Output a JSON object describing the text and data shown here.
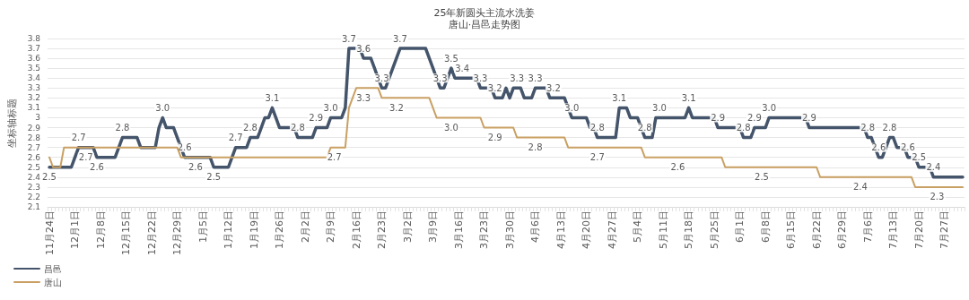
{
  "chart_data": {
    "type": "line",
    "title": "25年新圆头主流水洗姜",
    "subtitle": "唐山·昌邑走势图",
    "ylabel": "坐标轴标题",
    "categories": [
      "11月24日",
      null,
      null,
      null,
      null,
      null,
      null,
      "12月1日",
      null,
      null,
      null,
      null,
      null,
      null,
      "12月8日",
      null,
      null,
      null,
      null,
      null,
      null,
      "12月15日",
      null,
      null,
      null,
      null,
      null,
      null,
      "12月22日",
      null,
      null,
      null,
      null,
      null,
      null,
      "12月29日",
      null,
      null,
      null,
      null,
      null,
      null,
      "1月5日",
      null,
      null,
      null,
      null,
      null,
      null,
      "1月12日",
      null,
      null,
      null,
      null,
      null,
      null,
      "1月19日",
      null,
      null,
      null,
      null,
      null,
      null,
      "1月26日",
      null,
      null,
      null,
      null,
      null,
      null,
      "2月2日",
      null,
      null,
      null,
      null,
      null,
      null,
      "2月9日",
      null,
      null,
      null,
      null,
      null,
      null,
      "2月16日",
      null,
      null,
      null,
      null,
      null,
      null,
      "2月23日",
      null,
      null,
      null,
      null,
      null,
      null,
      "3月2日",
      null,
      null,
      null,
      null,
      null,
      null,
      "3月9日",
      null,
      null,
      null,
      null,
      null,
      null,
      "3月16日",
      null,
      null,
      null,
      null,
      null,
      null,
      "3月23日",
      null,
      null,
      null,
      null,
      null,
      null,
      "3月30日",
      null,
      null,
      null,
      null,
      null,
      null,
      "4月6日",
      null,
      null,
      null,
      null,
      null,
      null,
      "4月13日",
      null,
      null,
      null,
      null,
      null,
      null,
      "4月20日",
      null,
      null,
      null,
      null,
      null,
      null,
      "4月27日",
      null,
      null,
      null,
      null,
      null,
      null,
      "5月4日",
      null,
      null,
      null,
      null,
      null,
      null,
      "5月11日",
      null,
      null,
      null,
      null,
      null,
      null,
      "5月18日",
      null,
      null,
      null,
      null,
      null,
      null,
      "5月25日",
      null,
      null,
      null,
      null,
      null,
      null,
      "6月1日",
      null,
      null,
      null,
      null,
      null,
      null,
      "6月8日",
      null,
      null,
      null,
      null,
      null,
      null,
      "6月15日",
      null,
      null,
      null,
      null,
      null,
      null,
      "6月22日",
      null,
      null,
      null,
      null,
      null,
      null,
      "6月29日",
      null,
      null,
      null,
      null,
      null,
      null,
      "7月6日",
      null,
      null,
      null,
      null,
      null,
      null,
      "7月13日",
      null,
      null,
      null,
      null,
      null,
      null,
      "7月20日",
      null,
      null,
      null,
      null,
      null,
      null,
      "7月27日",
      null,
      null,
      null,
      null,
      null
    ],
    "series": [
      {
        "name": "昌邑",
        "color": "#44546a",
        "values": [
          2.5,
          2.5,
          2.5,
          2.5,
          2.5,
          2.5,
          2.5,
          2.6,
          2.7,
          2.7,
          2.7,
          2.7,
          2.7,
          2.6,
          2.6,
          2.6,
          2.6,
          2.6,
          2.6,
          2.7,
          2.8,
          2.8,
          2.8,
          2.8,
          2.8,
          2.7,
          2.7,
          2.7,
          2.7,
          2.7,
          2.9,
          3.0,
          2.9,
          2.9,
          2.9,
          2.8,
          2.7,
          2.6,
          2.6,
          2.6,
          2.6,
          2.6,
          2.6,
          2.6,
          2.6,
          2.5,
          2.5,
          2.5,
          2.5,
          2.5,
          2.6,
          2.7,
          2.7,
          2.7,
          2.7,
          2.8,
          2.8,
          2.8,
          2.9,
          3.0,
          3.0,
          3.1,
          3.0,
          2.9,
          2.9,
          2.9,
          2.9,
          2.9,
          2.8,
          2.8,
          2.8,
          2.8,
          2.8,
          2.9,
          2.9,
          2.9,
          2.9,
          3.0,
          3.0,
          3.0,
          3.0,
          3.1,
          3.7,
          3.7,
          3.7,
          3.7,
          3.6,
          3.6,
          3.6,
          3.5,
          3.4,
          3.3,
          3.3,
          3.4,
          3.5,
          3.6,
          3.7,
          3.7,
          3.7,
          3.7,
          3.7,
          3.7,
          3.7,
          3.7,
          3.6,
          3.5,
          3.4,
          3.3,
          3.3,
          3.4,
          3.5,
          3.4,
          3.4,
          3.4,
          3.4,
          3.4,
          3.4,
          3.4,
          3.3,
          3.3,
          3.3,
          3.3,
          3.2,
          3.2,
          3.2,
          3.3,
          3.2,
          3.3,
          3.3,
          3.3,
          3.2,
          3.2,
          3.2,
          3.3,
          3.3,
          3.3,
          3.3,
          3.2,
          3.2,
          3.2,
          3.2,
          3.2,
          3.1,
          3.0,
          3.0,
          3.0,
          3.0,
          3.0,
          2.9,
          2.9,
          2.8,
          2.8,
          2.8,
          2.8,
          2.8,
          2.8,
          3.1,
          3.1,
          3.1,
          3.0,
          3.0,
          3.0,
          2.9,
          2.8,
          2.8,
          2.8,
          3.0,
          3.0,
          3.0,
          3.0,
          3.0,
          3.0,
          3.0,
          3.0,
          3.0,
          3.1,
          3.0,
          3.0,
          3.0,
          3.0,
          3.0,
          3.0,
          3.0,
          2.9,
          2.9,
          2.9,
          2.9,
          2.9,
          2.9,
          2.9,
          2.8,
          2.8,
          2.8,
          2.9,
          2.9,
          2.9,
          2.9,
          3.0,
          3.0,
          3.0,
          3.0,
          3.0,
          3.0,
          3.0,
          3.0,
          3.0,
          3.0,
          3.0,
          2.9,
          2.9,
          2.9,
          2.9,
          2.9,
          2.9,
          2.9,
          2.9,
          2.9,
          2.9,
          2.9,
          2.9,
          2.9,
          2.9,
          2.9,
          2.9,
          2.8,
          2.8,
          2.7,
          2.6,
          2.6,
          2.7,
          2.8,
          2.8,
          2.7,
          2.7,
          2.7,
          2.6,
          2.6,
          2.6,
          2.5,
          2.5,
          2.5,
          2.5,
          2.4,
          2.4,
          2.4,
          2.4,
          2.4,
          2.4,
          2.4,
          2.4,
          2.4
        ],
        "value_labels": [
          "2.5",
          null,
          null,
          null,
          null,
          null,
          null,
          null,
          "2.7",
          null,
          null,
          null,
          null,
          "2.6",
          null,
          null,
          null,
          null,
          null,
          null,
          "2.8",
          null,
          null,
          null,
          null,
          null,
          null,
          null,
          null,
          null,
          null,
          "3.0",
          null,
          null,
          null,
          null,
          null,
          "2.6",
          null,
          null,
          null,
          null,
          null,
          null,
          null,
          "2.5",
          null,
          null,
          null,
          null,
          null,
          "2.7",
          null,
          null,
          null,
          "2.8",
          null,
          null,
          null,
          null,
          null,
          "3.1",
          null,
          null,
          null,
          null,
          null,
          null,
          "2.8",
          null,
          null,
          null,
          null,
          "2.9",
          null,
          null,
          null,
          "3.0",
          null,
          null,
          null,
          null,
          "3.7",
          null,
          null,
          null,
          "3.6",
          null,
          null,
          null,
          null,
          "3.3",
          null,
          null,
          null,
          null,
          "3.7",
          null,
          null,
          null,
          null,
          null,
          null,
          null,
          null,
          null,
          null,
          "3.3",
          null,
          null,
          "3.5",
          null,
          null,
          "3.4",
          null,
          null,
          null,
          null,
          "3.3",
          null,
          null,
          null,
          "3.2",
          null,
          null,
          null,
          null,
          null,
          "3.3",
          null,
          null,
          null,
          null,
          "3.3",
          null,
          null,
          null,
          null,
          "3.2",
          null,
          null,
          null,
          null,
          "3.0",
          null,
          null,
          null,
          null,
          null,
          null,
          "2.8",
          null,
          null,
          null,
          null,
          null,
          "3.1",
          null,
          null,
          null,
          null,
          null,
          null,
          "2.8",
          null,
          null,
          null,
          "3.0",
          null,
          null,
          null,
          null,
          null,
          null,
          null,
          "3.1",
          null,
          null,
          null,
          null,
          null,
          null,
          null,
          "2.9",
          null,
          null,
          null,
          null,
          null,
          null,
          "2.8",
          null,
          null,
          "2.9",
          null,
          null,
          null,
          "3.0",
          null,
          null,
          null,
          null,
          null,
          null,
          null,
          null,
          null,
          null,
          "2.9",
          null,
          null,
          null,
          null,
          null,
          null,
          null,
          null,
          null,
          null,
          null,
          null,
          null,
          null,
          null,
          "2.8",
          null,
          null,
          "2.6",
          null,
          null,
          "2.8",
          null,
          null,
          null,
          null,
          "2.6",
          null,
          null,
          "2.5",
          null,
          null,
          null,
          "2.4",
          null,
          null,
          null,
          null,
          null,
          null,
          null,
          null
        ]
      },
      {
        "name": "唐山",
        "color": "#c9a063",
        "values": [
          2.6,
          2.5,
          2.5,
          2.5,
          2.7,
          2.7,
          2.7,
          2.7,
          2.7,
          2.7,
          2.7,
          2.7,
          2.7,
          2.7,
          2.7,
          2.7,
          2.7,
          2.7,
          2.7,
          2.7,
          2.7,
          2.7,
          2.7,
          2.7,
          2.7,
          2.7,
          2.7,
          2.7,
          2.7,
          2.7,
          2.7,
          2.7,
          2.7,
          2.7,
          2.7,
          2.7,
          2.6,
          2.6,
          2.6,
          2.6,
          2.6,
          2.6,
          2.6,
          2.6,
          2.6,
          2.6,
          2.6,
          2.6,
          2.6,
          2.6,
          2.6,
          2.6,
          2.6,
          2.6,
          2.6,
          2.6,
          2.6,
          2.6,
          2.6,
          2.6,
          2.6,
          2.6,
          2.6,
          2.6,
          2.6,
          2.6,
          2.6,
          2.6,
          2.6,
          2.6,
          2.6,
          2.6,
          2.6,
          2.6,
          2.6,
          2.6,
          2.6,
          2.7,
          2.7,
          2.7,
          2.7,
          2.7,
          3.1,
          3.2,
          3.3,
          3.3,
          3.3,
          3.3,
          3.3,
          3.3,
          3.3,
          3.2,
          3.2,
          3.2,
          3.2,
          3.2,
          3.2,
          3.2,
          3.2,
          3.2,
          3.2,
          3.2,
          3.2,
          3.2,
          3.2,
          3.1,
          3.0,
          3.0,
          3.0,
          3.0,
          3.0,
          3.0,
          3.0,
          3.0,
          3.0,
          3.0,
          3.0,
          3.0,
          3.0,
          2.9,
          2.9,
          2.9,
          2.9,
          2.9,
          2.9,
          2.9,
          2.9,
          2.9,
          2.8,
          2.8,
          2.8,
          2.8,
          2.8,
          2.8,
          2.8,
          2.8,
          2.8,
          2.8,
          2.8,
          2.8,
          2.8,
          2.8,
          2.7,
          2.7,
          2.7,
          2.7,
          2.7,
          2.7,
          2.7,
          2.7,
          2.7,
          2.7,
          2.7,
          2.7,
          2.7,
          2.7,
          2.7,
          2.7,
          2.7,
          2.7,
          2.7,
          2.7,
          2.7,
          2.6,
          2.6,
          2.6,
          2.6,
          2.6,
          2.6,
          2.6,
          2.6,
          2.6,
          2.6,
          2.6,
          2.6,
          2.6,
          2.6,
          2.6,
          2.6,
          2.6,
          2.6,
          2.6,
          2.6,
          2.6,
          2.6,
          2.5,
          2.5,
          2.5,
          2.5,
          2.5,
          2.5,
          2.5,
          2.5,
          2.5,
          2.5,
          2.5,
          2.5,
          2.5,
          2.5,
          2.5,
          2.5,
          2.5,
          2.5,
          2.5,
          2.5,
          2.5,
          2.5,
          2.5,
          2.5,
          2.5,
          2.5,
          2.4,
          2.4,
          2.4,
          2.4,
          2.4,
          2.4,
          2.4,
          2.4,
          2.4,
          2.4,
          2.4,
          2.4,
          2.4,
          2.4,
          2.4,
          2.4,
          2.4,
          2.4,
          2.4,
          2.4,
          2.4,
          2.4,
          2.4,
          2.4,
          2.4,
          2.4,
          2.3,
          2.3,
          2.3,
          2.3,
          2.3,
          2.3,
          2.3,
          2.3,
          2.3,
          2.3,
          2.3,
          2.3,
          2.3,
          2.3
        ],
        "value_labels": [
          null,
          null,
          null,
          null,
          null,
          null,
          null,
          null,
          null,
          null,
          "2.7",
          null,
          null,
          null,
          null,
          null,
          null,
          null,
          null,
          null,
          null,
          null,
          null,
          null,
          null,
          null,
          null,
          null,
          null,
          null,
          null,
          null,
          null,
          null,
          null,
          null,
          null,
          null,
          null,
          null,
          "2.6",
          null,
          null,
          null,
          null,
          null,
          null,
          null,
          null,
          null,
          null,
          null,
          null,
          null,
          null,
          null,
          null,
          null,
          null,
          null,
          null,
          null,
          null,
          null,
          null,
          null,
          null,
          null,
          null,
          null,
          null,
          null,
          null,
          null,
          null,
          null,
          null,
          null,
          "2.7",
          null,
          null,
          null,
          null,
          null,
          null,
          null,
          "3.3",
          null,
          null,
          null,
          null,
          null,
          null,
          null,
          null,
          "3.2",
          null,
          null,
          null,
          null,
          null,
          null,
          null,
          null,
          null,
          null,
          null,
          null,
          null,
          null,
          "3.0",
          null,
          null,
          null,
          null,
          null,
          null,
          null,
          null,
          null,
          null,
          null,
          "2.9",
          null,
          null,
          null,
          null,
          null,
          null,
          null,
          null,
          null,
          null,
          "2.8",
          null,
          null,
          null,
          null,
          null,
          null,
          null,
          null,
          null,
          null,
          null,
          null,
          null,
          null,
          null,
          null,
          "2.7",
          null,
          null,
          null,
          null,
          null,
          null,
          null,
          null,
          null,
          null,
          null,
          null,
          null,
          null,
          null,
          null,
          null,
          null,
          null,
          null,
          null,
          "2.6",
          null,
          null,
          null,
          null,
          null,
          null,
          null,
          null,
          null,
          null,
          null,
          null,
          null,
          null,
          null,
          null,
          null,
          null,
          null,
          null,
          null,
          null,
          "2.5",
          null,
          null,
          null,
          null,
          null,
          null,
          null,
          null,
          null,
          null,
          null,
          null,
          null,
          null,
          null,
          null,
          null,
          null,
          null,
          null,
          null,
          null,
          null,
          null,
          null,
          null,
          "2.4",
          null,
          null,
          null,
          null,
          null,
          null,
          null,
          null,
          null,
          null,
          null,
          null,
          null,
          null,
          null,
          null,
          null,
          null,
          null,
          null,
          "2.3",
          null,
          null,
          null,
          null,
          null,
          null,
          null
        ]
      }
    ],
    "ylim": [
      2.1,
      3.8
    ],
    "yticks": [
      2.1,
      2.2,
      2.3,
      2.4,
      2.5,
      2.6,
      2.7,
      2.8,
      2.9,
      3,
      3.1,
      3.2,
      3.3,
      3.4,
      3.5,
      3.6,
      3.7,
      3.8
    ],
    "grid": "y",
    "legend": "bottom left",
    "marker": "none",
    "line_style": "solid"
  }
}
